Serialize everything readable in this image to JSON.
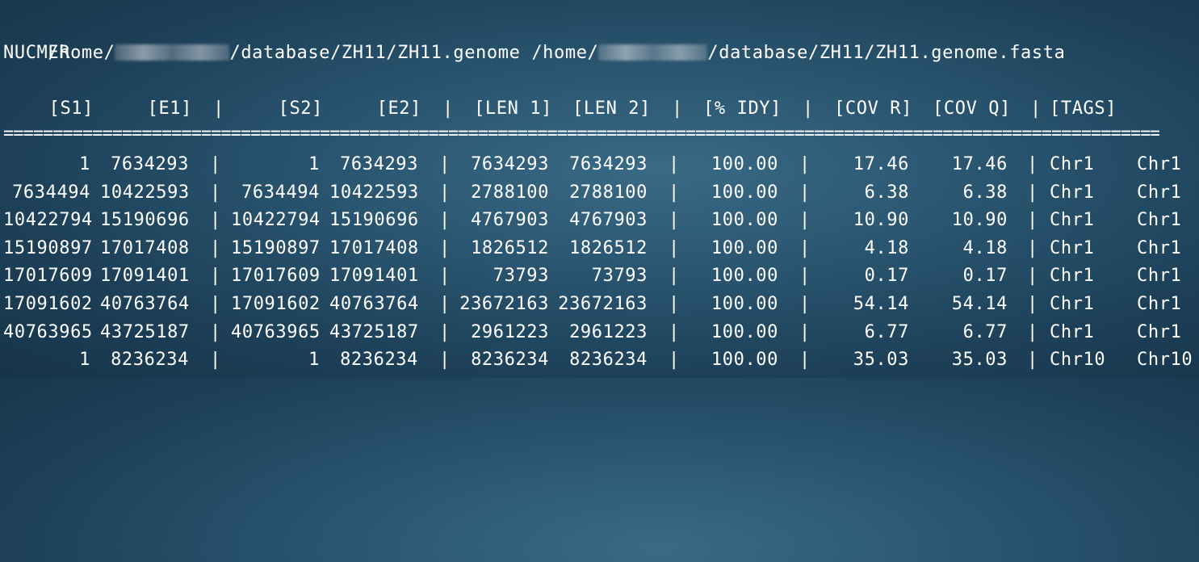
{
  "terminal": {
    "header_line": {
      "path1_prefix": "/home/",
      "path1_suffix": "/database/ZH11/ZH11.genome",
      "path2_prefix": "/home/",
      "path2_suffix": "/database/ZH11/ZH11.genome.fasta"
    },
    "program": "NUCMER",
    "columns": {
      "s1": "[S1]",
      "e1": "[E1]",
      "s2": "[S2]",
      "e2": "[E2]",
      "len1": "[LEN 1]",
      "len2": "[LEN 2]",
      "idy": "[% IDY]",
      "covr": "[COV R]",
      "covq": "[COV Q]",
      "tags": "[TAGS]",
      "sep": "|"
    },
    "rule": "=====================================================================================================================================",
    "rows": [
      {
        "s1": "1",
        "e1": "7634293",
        "s2": "1",
        "e2": "7634293",
        "len1": "7634293",
        "len2": "7634293",
        "idy": "100.00",
        "covr": "17.46",
        "covq": "17.46",
        "tag1": "Chr1",
        "tag2": "Chr1"
      },
      {
        "s1": "7634494",
        "e1": "10422593",
        "s2": "7634494",
        "e2": "10422593",
        "len1": "2788100",
        "len2": "2788100",
        "idy": "100.00",
        "covr": "6.38",
        "covq": "6.38",
        "tag1": "Chr1",
        "tag2": "Chr1"
      },
      {
        "s1": "10422794",
        "e1": "15190696",
        "s2": "10422794",
        "e2": "15190696",
        "len1": "4767903",
        "len2": "4767903",
        "idy": "100.00",
        "covr": "10.90",
        "covq": "10.90",
        "tag1": "Chr1",
        "tag2": "Chr1"
      },
      {
        "s1": "15190897",
        "e1": "17017408",
        "s2": "15190897",
        "e2": "17017408",
        "len1": "1826512",
        "len2": "1826512",
        "idy": "100.00",
        "covr": "4.18",
        "covq": "4.18",
        "tag1": "Chr1",
        "tag2": "Chr1"
      },
      {
        "s1": "17017609",
        "e1": "17091401",
        "s2": "17017609",
        "e2": "17091401",
        "len1": "73793",
        "len2": "73793",
        "idy": "100.00",
        "covr": "0.17",
        "covq": "0.17",
        "tag1": "Chr1",
        "tag2": "Chr1"
      },
      {
        "s1": "17091602",
        "e1": "40763764",
        "s2": "17091602",
        "e2": "40763764",
        "len1": "23672163",
        "len2": "23672163",
        "idy": "100.00",
        "covr": "54.14",
        "covq": "54.14",
        "tag1": "Chr1",
        "tag2": "Chr1"
      },
      {
        "s1": "40763965",
        "e1": "43725187",
        "s2": "40763965",
        "e2": "43725187",
        "len1": "2961223",
        "len2": "2961223",
        "idy": "100.00",
        "covr": "6.77",
        "covq": "6.77",
        "tag1": "Chr1",
        "tag2": "Chr1"
      },
      {
        "s1": "1",
        "e1": "8236234",
        "s2": "1",
        "e2": "8236234",
        "len1": "8236234",
        "len2": "8236234",
        "idy": "100.00",
        "covr": "35.03",
        "covq": "35.03",
        "tag1": "Chr10",
        "tag2": "Chr10"
      }
    ]
  }
}
